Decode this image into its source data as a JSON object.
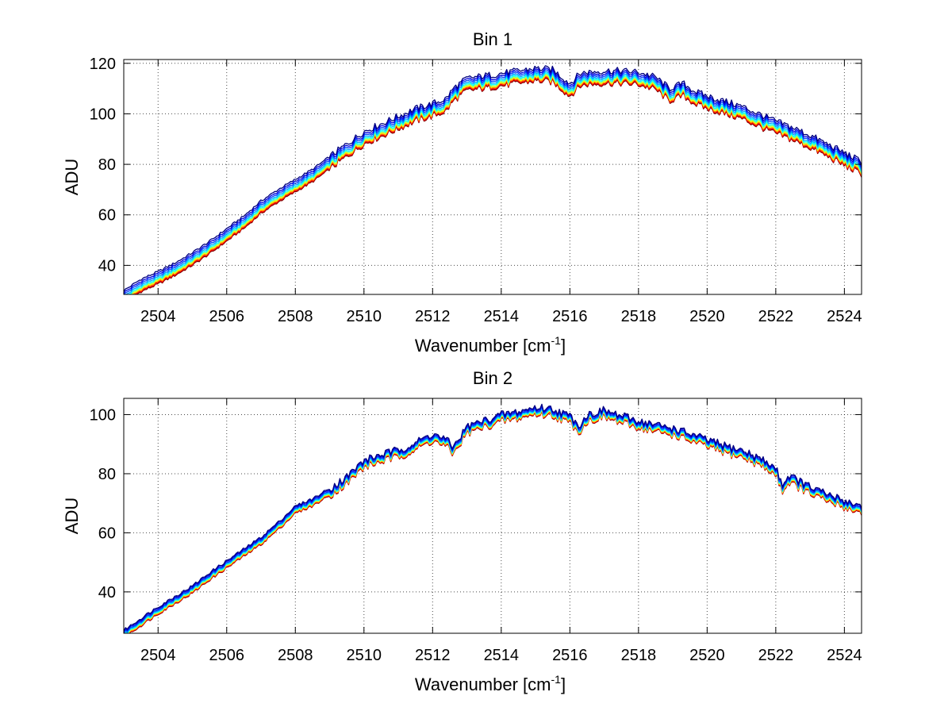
{
  "chart_data": [
    {
      "type": "line",
      "title": "Bin 1",
      "xlabel": "Wavenumber [cm",
      "xlabel_sup": "-1",
      "xlabel_suffix": "]",
      "ylabel": "ADU",
      "xlim": [
        2503.0,
        2524.5
      ],
      "ylim": [
        28.5,
        121.5
      ],
      "xticks": [
        2504,
        2506,
        2508,
        2510,
        2512,
        2514,
        2516,
        2518,
        2520,
        2522,
        2524
      ],
      "xtick_labels": [
        "2504",
        "2506",
        "2508",
        "2510",
        "2512",
        "2514",
        "2516",
        "2518",
        "2520",
        "2522",
        "2524"
      ],
      "yticks": [
        40,
        60,
        80,
        100,
        120
      ],
      "ytick_labels": [
        "40",
        "60",
        "80",
        "100",
        "120"
      ],
      "grid": true,
      "x": [
        2503.0,
        2503.5,
        2504.0,
        2504.5,
        2505.0,
        2505.5,
        2506.0,
        2506.5,
        2507.0,
        2507.5,
        2508.0,
        2508.5,
        2509.0,
        2509.5,
        2510.0,
        2510.5,
        2511.0,
        2511.5,
        2512.0,
        2512.4,
        2512.6,
        2513.0,
        2513.5,
        2514.0,
        2514.5,
        2515.0,
        2515.5,
        2516.0,
        2516.3,
        2516.5,
        2517.0,
        2517.5,
        2518.0,
        2518.5,
        2518.9,
        2519.3,
        2519.7,
        2520.0,
        2520.5,
        2521.0,
        2521.5,
        2522.0,
        2522.5,
        2523.0,
        2523.5,
        2524.0,
        2524.5
      ],
      "values": [
        30.0,
        34.5,
        37.5,
        41.0,
        45.0,
        49.5,
        54.5,
        59.5,
        65.5,
        70.0,
        74.0,
        78.0,
        83.0,
        88.0,
        93.0,
        96.0,
        99.0,
        102.0,
        104.0,
        106.0,
        110.0,
        114.0,
        115.0,
        116.0,
        117.0,
        118.0,
        117.5,
        112.0,
        116.0,
        116.5,
        117.0,
        117.0,
        116.5,
        114.5,
        110.0,
        112.0,
        108.5,
        107.0,
        105.0,
        103.0,
        100.0,
        97.0,
        94.5,
        91.5,
        88.0,
        84.5,
        81.0
      ],
      "series": [
        {
          "name": "",
          "color": "#00007f",
          "offset": 0.0
        },
        {
          "name": "",
          "color": "#0000e0",
          "offset": -0.8
        },
        {
          "name": "",
          "color": "#0040ff",
          "offset": -1.5
        },
        {
          "name": "",
          "color": "#00a0ff",
          "offset": -2.2
        },
        {
          "name": "",
          "color": "#00ffff",
          "offset": -2.8
        },
        {
          "name": "",
          "color": "#80ff80",
          "offset": -3.3
        },
        {
          "name": "",
          "color": "#ffff00",
          "offset": -3.7
        },
        {
          "name": "",
          "color": "#ff8000",
          "offset": -4.1
        },
        {
          "name": "",
          "color": "#ff0000",
          "offset": -4.5
        },
        {
          "name": "",
          "color": "#800000",
          "offset": -4.9
        }
      ]
    },
    {
      "type": "line",
      "title": "Bin 2",
      "xlabel": "Wavenumber [cm",
      "xlabel_sup": "-1",
      "xlabel_suffix": "]",
      "ylabel": "ADU",
      "xlim": [
        2503.0,
        2524.5
      ],
      "ylim": [
        26.0,
        105.5
      ],
      "xticks": [
        2504,
        2506,
        2508,
        2510,
        2512,
        2514,
        2516,
        2518,
        2520,
        2522,
        2524
      ],
      "xtick_labels": [
        "2504",
        "2506",
        "2508",
        "2510",
        "2512",
        "2514",
        "2516",
        "2518",
        "2520",
        "2522",
        "2524"
      ],
      "yticks": [
        40,
        60,
        80,
        100
      ],
      "ytick_labels": [
        "40",
        "60",
        "80",
        "100"
      ],
      "grid": true,
      "x": [
        2503.0,
        2503.5,
        2504.0,
        2504.5,
        2505.0,
        2505.5,
        2506.0,
        2506.5,
        2507.0,
        2507.5,
        2508.0,
        2508.5,
        2509.0,
        2509.5,
        2510.0,
        2510.5,
        2511.0,
        2511.5,
        2512.0,
        2512.4,
        2512.6,
        2513.0,
        2513.5,
        2514.0,
        2514.5,
        2515.0,
        2515.5,
        2516.0,
        2516.3,
        2516.5,
        2517.0,
        2517.5,
        2518.0,
        2518.5,
        2519.0,
        2519.5,
        2520.0,
        2520.5,
        2521.0,
        2521.5,
        2522.0,
        2522.2,
        2522.4,
        2523.0,
        2523.5,
        2524.0,
        2524.5
      ],
      "values": [
        27.0,
        31.0,
        35.0,
        38.5,
        42.0,
        46.5,
        50.5,
        54.5,
        58.5,
        63.5,
        69.0,
        71.5,
        75.0,
        79.0,
        84.5,
        86.5,
        88.0,
        90.5,
        93.5,
        91.5,
        89.0,
        96.0,
        98.0,
        100.0,
        101.0,
        102.5,
        102.0,
        99.5,
        96.5,
        100.0,
        101.5,
        99.5,
        98.0,
        96.5,
        95.5,
        93.5,
        91.5,
        89.5,
        88.0,
        85.5,
        82.0,
        76.5,
        79.5,
        75.5,
        73.0,
        71.0,
        69.0
      ],
      "series": [
        {
          "name": "",
          "color": "#00007f",
          "offset": 0.0
        },
        {
          "name": "",
          "color": "#0000e0",
          "offset": -0.4
        },
        {
          "name": "",
          "color": "#0040ff",
          "offset": -0.8
        },
        {
          "name": "",
          "color": "#00a0ff",
          "offset": -1.1
        },
        {
          "name": "",
          "color": "#00ffff",
          "offset": -1.4
        },
        {
          "name": "",
          "color": "#80ff80",
          "offset": -1.6
        },
        {
          "name": "",
          "color": "#ffff00",
          "offset": -1.8
        },
        {
          "name": "",
          "color": "#ff8000",
          "offset": -2.0
        },
        {
          "name": "",
          "color": "#ff0000",
          "offset": -2.2
        },
        {
          "name": "",
          "color": "#800000",
          "offset": -2.4
        }
      ]
    }
  ]
}
